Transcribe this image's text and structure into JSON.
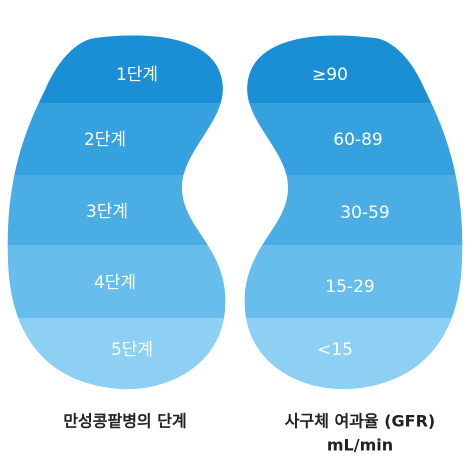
{
  "stages": [
    {
      "stage": "1단계",
      "gfr": "≥90"
    },
    {
      "stage": "2단계",
      "gfr": "60-89"
    },
    {
      "stage": "3단계",
      "gfr": "30-59"
    },
    {
      "stage": "4단계",
      "gfr": "15-29"
    },
    {
      "stage": "5단계",
      "gfr": "<15"
    }
  ],
  "captions": {
    "left": "만성콩팥병의 단계",
    "right_line1": "사구체 여과율 (GFR)",
    "right_line2": "mL/min"
  }
}
